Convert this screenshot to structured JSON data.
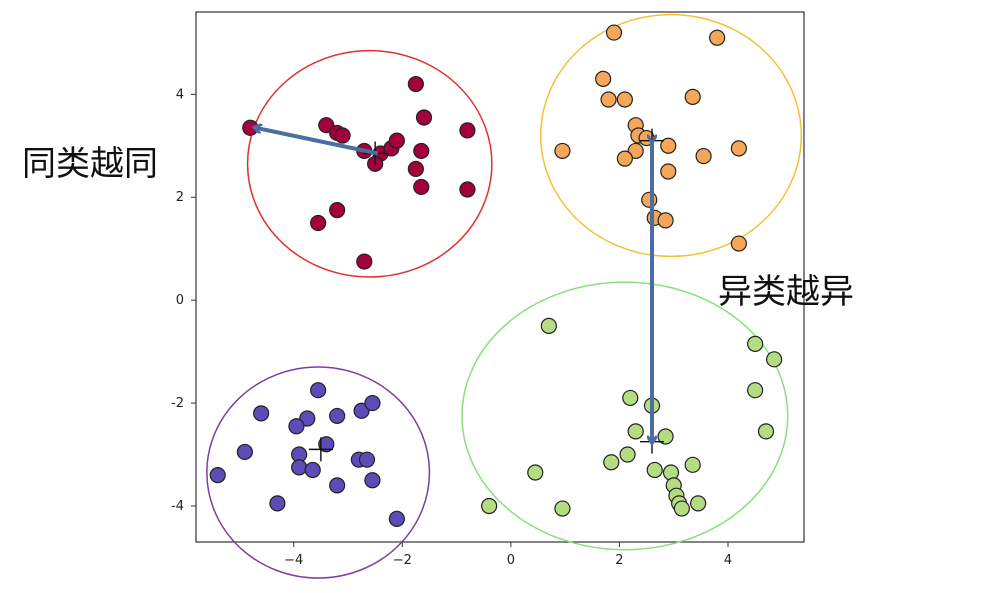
{
  "chart_data": {
    "type": "scatter",
    "xlim": [
      -5.8,
      5.4
    ],
    "ylim": [
      -4.7,
      5.6
    ],
    "xticks": [
      -4,
      -2,
      0,
      2,
      4
    ],
    "xtick_labels": [
      "−4",
      "−2",
      "0",
      "2",
      "4"
    ],
    "yticks": [
      -4,
      -2,
      0,
      2,
      4
    ],
    "ytick_labels": [
      "-4",
      "-2",
      "0",
      "2",
      "4"
    ],
    "grid": false,
    "series": [
      {
        "color": "#a3003c",
        "ring_color": "#e03030",
        "center": [
          -2.5,
          2.85
        ],
        "ellipse": {
          "cx": -2.6,
          "cy": 2.65,
          "rx": 2.25,
          "ry": 2.2
        },
        "points": [
          [
            -4.8,
            3.35
          ],
          [
            -3.4,
            3.4
          ],
          [
            -3.2,
            3.25
          ],
          [
            -3.1,
            3.2
          ],
          [
            -2.7,
            2.9
          ],
          [
            -2.4,
            2.85
          ],
          [
            -2.5,
            2.65
          ],
          [
            -2.2,
            2.95
          ],
          [
            -2.1,
            3.1
          ],
          [
            -1.75,
            4.2
          ],
          [
            -1.6,
            3.55
          ],
          [
            -1.65,
            2.9
          ],
          [
            -1.75,
            2.55
          ],
          [
            -1.65,
            2.2
          ],
          [
            -0.8,
            3.3
          ],
          [
            -0.8,
            2.15
          ],
          [
            -3.2,
            1.75
          ],
          [
            -3.55,
            1.5
          ],
          [
            -2.7,
            0.75
          ]
        ]
      },
      {
        "color": "#f5a658",
        "ring_color": "#f5c030",
        "center": [
          2.6,
          3.1
        ],
        "ellipse": {
          "cx": 2.95,
          "cy": 3.2,
          "rx": 2.4,
          "ry": 2.35
        },
        "points": [
          [
            1.9,
            5.2
          ],
          [
            3.8,
            5.1
          ],
          [
            1.7,
            4.3
          ],
          [
            1.8,
            3.9
          ],
          [
            2.1,
            3.9
          ],
          [
            3.35,
            3.95
          ],
          [
            2.3,
            3.4
          ],
          [
            2.35,
            3.2
          ],
          [
            2.5,
            3.15
          ],
          [
            2.3,
            2.9
          ],
          [
            2.1,
            2.75
          ],
          [
            2.9,
            3.0
          ],
          [
            3.55,
            2.8
          ],
          [
            4.2,
            2.95
          ],
          [
            0.95,
            2.9
          ],
          [
            2.9,
            2.5
          ],
          [
            2.55,
            1.95
          ],
          [
            2.65,
            1.6
          ],
          [
            2.85,
            1.55
          ],
          [
            4.2,
            1.1
          ]
        ]
      },
      {
        "color": "#5b4db8",
        "ring_color": "#7a3ea8",
        "center": [
          -3.5,
          -2.9
        ],
        "ellipse": {
          "cx": -3.55,
          "cy": -3.35,
          "rx": 2.05,
          "ry": 2.05
        },
        "points": [
          [
            -3.55,
            -1.75
          ],
          [
            -4.6,
            -2.2
          ],
          [
            -3.75,
            -2.3
          ],
          [
            -3.2,
            -2.25
          ],
          [
            -2.75,
            -2.15
          ],
          [
            -2.55,
            -2.0
          ],
          [
            -3.95,
            -2.45
          ],
          [
            -4.9,
            -2.95
          ],
          [
            -3.9,
            -3.0
          ],
          [
            -3.4,
            -2.8
          ],
          [
            -2.8,
            -3.1
          ],
          [
            -2.65,
            -3.1
          ],
          [
            -3.9,
            -3.25
          ],
          [
            -3.65,
            -3.3
          ],
          [
            -5.4,
            -3.4
          ],
          [
            -3.2,
            -3.6
          ],
          [
            -2.55,
            -3.5
          ],
          [
            -4.3,
            -3.95
          ],
          [
            -2.1,
            -4.25
          ]
        ]
      },
      {
        "color": "#b5dc83",
        "ring_color": "#88e07a",
        "center": [
          2.6,
          -2.75
        ],
        "ellipse": {
          "cx": 2.1,
          "cy": -2.25,
          "rx": 3.0,
          "ry": 2.6
        },
        "points": [
          [
            0.7,
            -0.5
          ],
          [
            4.5,
            -0.85
          ],
          [
            4.85,
            -1.15
          ],
          [
            4.5,
            -1.75
          ],
          [
            2.2,
            -1.9
          ],
          [
            2.6,
            -2.05
          ],
          [
            2.3,
            -2.55
          ],
          [
            2.85,
            -2.65
          ],
          [
            4.7,
            -2.55
          ],
          [
            2.15,
            -3.0
          ],
          [
            1.85,
            -3.15
          ],
          [
            2.65,
            -3.3
          ],
          [
            3.35,
            -3.2
          ],
          [
            2.95,
            -3.35
          ],
          [
            0.45,
            -3.35
          ],
          [
            3.0,
            -3.6
          ],
          [
            3.05,
            -3.8
          ],
          [
            3.1,
            -3.95
          ],
          [
            3.15,
            -4.05
          ],
          [
            3.45,
            -3.95
          ],
          [
            -0.4,
            -4.0
          ],
          [
            0.95,
            -4.05
          ]
        ]
      }
    ],
    "annotations": [
      {
        "text": "同类越同"
      },
      {
        "text": "异类越异"
      }
    ],
    "arrows": [
      {
        "from": [
          -2.45,
          2.85
        ],
        "to": [
          -4.7,
          3.35
        ]
      },
      {
        "from": [
          2.6,
          3.1
        ],
        "to": [
          2.6,
          -2.75
        ],
        "double": true
      }
    ]
  }
}
